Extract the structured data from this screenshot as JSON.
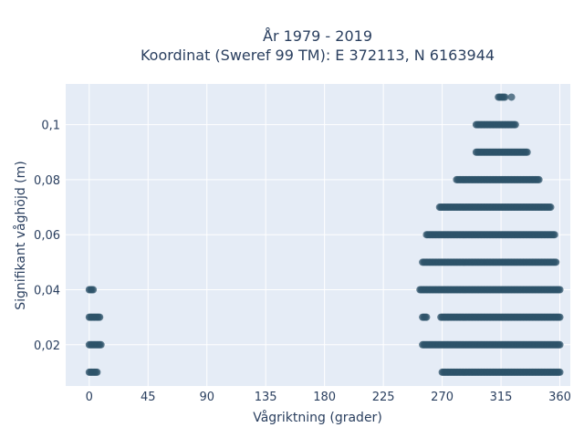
{
  "chart_data": {
    "type": "scatter",
    "title": "År 1979 - 2019",
    "subtitle": "Koordinat (Sweref 99 TM): E 372113, N 6163944",
    "xlabel": "Vågriktning (grader)",
    "ylabel": "Signifikant våghöjd (m)",
    "xlim": [
      -18,
      368
    ],
    "ylim": [
      0.005,
      0.1148
    ],
    "x_ticks": [
      0,
      45,
      90,
      135,
      180,
      225,
      270,
      315,
      360
    ],
    "x_tick_labels": [
      "0",
      "45",
      "90",
      "135",
      "180",
      "225",
      "270",
      "315",
      "360"
    ],
    "y_ticks": [
      0.02,
      0.04,
      0.06,
      0.08,
      0.1
    ],
    "y_tick_labels": [
      "0,02",
      "0,04",
      "0,06",
      "0,08",
      "0,1"
    ],
    "grid": true,
    "background_color": "#e5ecf6",
    "marker_color": "#2e5369",
    "series": [
      {
        "segments": [
          {
            "y": 0.01,
            "ranges": [
              [
                0,
                6
              ],
              [
                270,
                360
              ]
            ]
          },
          {
            "y": 0.02,
            "ranges": [
              [
                0,
                9
              ],
              [
                255,
                360
              ]
            ]
          },
          {
            "y": 0.03,
            "ranges": [
              [
                0,
                8
              ],
              [
                255,
                258
              ],
              [
                269,
                360
              ]
            ]
          },
          {
            "y": 0.04,
            "ranges": [
              [
                0,
                3
              ],
              [
                253,
                360
              ]
            ]
          },
          {
            "y": 0.05,
            "ranges": [
              [
                255,
                357
              ]
            ]
          },
          {
            "y": 0.06,
            "ranges": [
              [
                258,
                356
              ]
            ]
          },
          {
            "y": 0.07,
            "ranges": [
              [
                268,
                353
              ]
            ]
          },
          {
            "y": 0.08,
            "ranges": [
              [
                281,
                344
              ]
            ]
          },
          {
            "y": 0.09,
            "ranges": [
              [
                296,
                335
              ]
            ]
          },
          {
            "y": 0.1,
            "ranges": [
              [
                296,
                326
              ]
            ]
          },
          {
            "y": 0.11,
            "ranges": [
              [
                313,
                318
              ],
              [
                323,
                323
              ]
            ]
          }
        ]
      }
    ]
  }
}
